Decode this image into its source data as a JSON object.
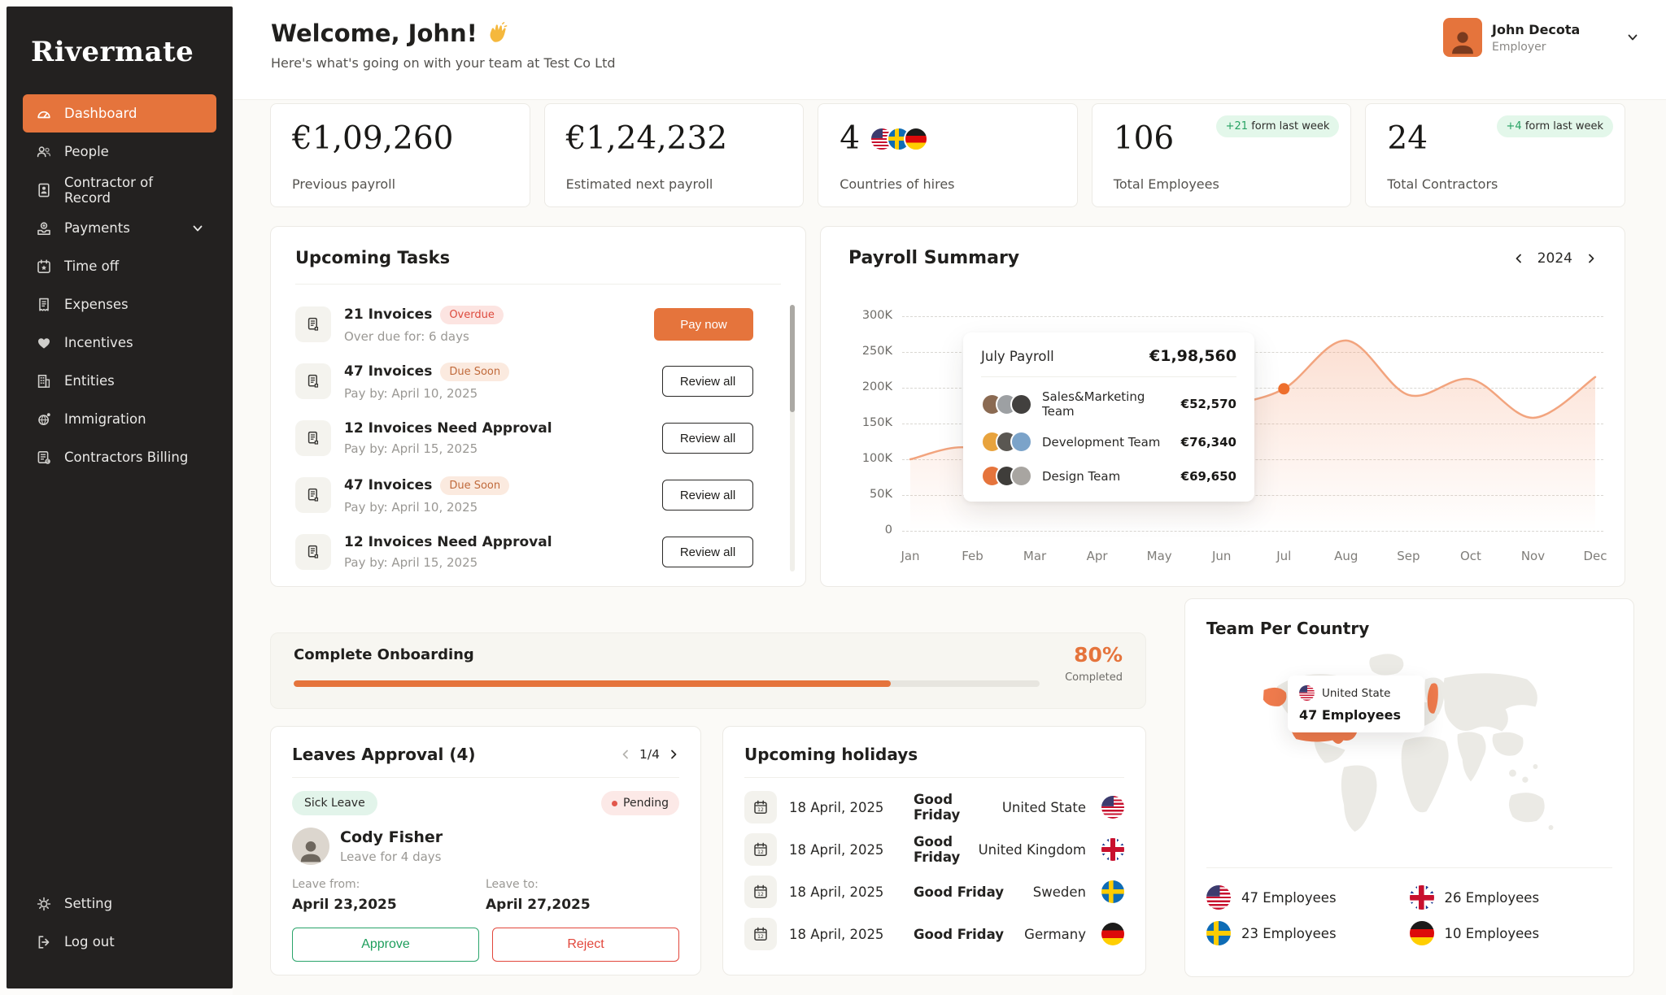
{
  "sidebar": {
    "logo": "Rivermate",
    "items": [
      {
        "label": "Dashboard",
        "active": true
      },
      {
        "label": "People"
      },
      {
        "label": "Contractor of Record"
      },
      {
        "label": "Payments",
        "expandable": true
      },
      {
        "label": "Time off"
      },
      {
        "label": "Expenses"
      },
      {
        "label": "Incentives"
      },
      {
        "label": "Entities"
      },
      {
        "label": "Immigration"
      },
      {
        "label": "Contractors Billing"
      }
    ],
    "footer": [
      {
        "label": "Setting"
      },
      {
        "label": "Log out"
      }
    ]
  },
  "header": {
    "welcome": "Welcome, John!",
    "subtitle": "Here's what's going on with your team at Test Co Ltd",
    "user": {
      "name": "John Decota",
      "role": "Employer"
    }
  },
  "stats": [
    {
      "value": "€1,09,260",
      "label": "Previous payroll"
    },
    {
      "value": "€1,24,232",
      "label": "Estimated next payroll"
    },
    {
      "value": "4",
      "label": "Countries of hires",
      "flags": [
        "us",
        "se",
        "de"
      ]
    },
    {
      "value": "106",
      "label": "Total Employees",
      "badge_highlight": "+21",
      "badge_text": "form last week"
    },
    {
      "value": "24",
      "label": "Total Contractors",
      "badge_highlight": "+4",
      "badge_text": "form last week"
    }
  ],
  "tasks": {
    "title": "Upcoming Tasks",
    "rows": [
      {
        "title": "21 Invoices",
        "badge": "Overdue",
        "subtitle": "Over due for: 6 days",
        "action": "Pay now"
      },
      {
        "title": "47 Invoices",
        "badge": "Due Soon",
        "subtitle": "Pay by: April 10, 2025",
        "action": "Review all"
      },
      {
        "title": "12 Invoices Need Approval",
        "subtitle": "Pay by: April 15, 2025",
        "action": "Review all"
      },
      {
        "title": "47 Invoices",
        "badge": "Due Soon",
        "subtitle": "Pay by: April 10, 2025",
        "action": "Review all"
      },
      {
        "title": "12 Invoices Need Approval",
        "subtitle": "Pay by: April 15, 2025",
        "action": "Review all"
      }
    ]
  },
  "payroll": {
    "title": "Payroll Summary",
    "year": "2024",
    "tooltip": {
      "title": "July Payroll",
      "total": "€1,98,560",
      "rows": [
        {
          "name": "Sales&Marketing Team",
          "value": "€52,570"
        },
        {
          "name": "Development Team",
          "value": "€76,340"
        },
        {
          "name": "Design Team",
          "value": "€69,650"
        }
      ]
    }
  },
  "chart_data": {
    "type": "line",
    "title": "Payroll Summary",
    "months": [
      "Jan",
      "Feb",
      "Mar",
      "Apr",
      "May",
      "Jun",
      "Jul",
      "Aug",
      "Sep",
      "Oct",
      "Nov",
      "Dec"
    ],
    "values": [
      100,
      115,
      52,
      80,
      125,
      170,
      198.56,
      266,
      190,
      212,
      158,
      215
    ],
    "unit": "K€",
    "y_ticks": [
      "300K",
      "250K",
      "200K",
      "150K",
      "100K",
      "50K",
      "0"
    ],
    "ylim": [
      0,
      300
    ],
    "highlight_index": 6,
    "highlight_value": "€1,98,560",
    "grid": "dashed-horizontal",
    "line_color": "#F2A47E",
    "dot_color": "#EE6F2D"
  },
  "onboarding": {
    "title": "Complete Onboarding",
    "percent": "80%",
    "percent_value": 80,
    "completed_label": "Completed"
  },
  "leaves": {
    "title": "Leaves Approval (4)",
    "pagination": "1/4",
    "type_badge": "Sick Leave",
    "status_badge": "Pending",
    "name": "Cody Fisher",
    "duration": "Leave for 4 days",
    "from_label": "Leave from:",
    "from_value": "April 23,2025",
    "to_label": "Leave to:",
    "to_value": "April 27,2025",
    "approve_label": "Approve",
    "reject_label": "Reject"
  },
  "holidays": {
    "title": "Upcoming holidays",
    "rows": [
      {
        "date": "18 April, 2025",
        "name": "Good Friday",
        "country": "United State",
        "flag": "us"
      },
      {
        "date": "18 April, 2025",
        "name": "Good Friday",
        "country": "United Kingdom",
        "flag": "uk"
      },
      {
        "date": "18 April, 2025",
        "name": "Good Friday",
        "country": "Sweden",
        "flag": "se"
      },
      {
        "date": "18 April, 2025",
        "name": "Good Friday",
        "country": "Germany",
        "flag": "de"
      }
    ]
  },
  "team_map": {
    "title": "Team Per Country",
    "tooltip": {
      "country": "United State",
      "employees": "47 Employees",
      "flag": "us"
    },
    "highlight_color": "#EF7B4D",
    "legend": [
      {
        "flag": "us",
        "label": "47 Employees"
      },
      {
        "flag": "uk",
        "label": "26 Employees"
      },
      {
        "flag": "se",
        "label": "23 Employees"
      },
      {
        "flag": "de",
        "label": "10 Employees"
      }
    ]
  }
}
